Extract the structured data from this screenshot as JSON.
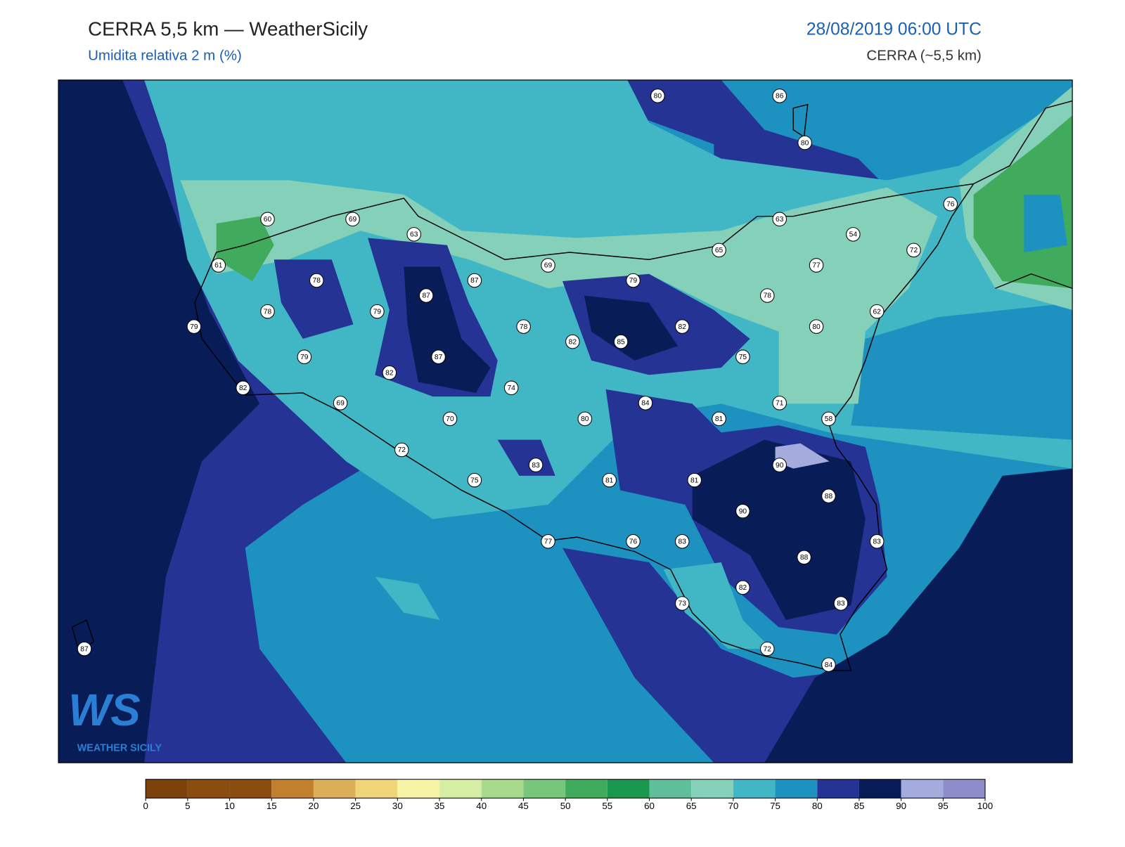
{
  "header": {
    "title": "CERRA 5,5 km — WeatherSicily",
    "subtitle": "Umidita relativa 2 m (%)",
    "datetime": "28/08/2019 06:00 UTC",
    "model": "CERRA (~5,5 km)"
  },
  "stations": [
    80,
    86,
    80,
    60,
    69,
    63,
    76,
    63,
    54,
    72,
    61,
    65,
    77,
    78,
    87,
    69,
    79,
    87,
    78,
    78,
    79,
    62,
    79,
    78,
    82,
    85,
    82,
    80,
    79,
    87,
    75,
    82,
    74,
    82,
    84,
    71,
    69,
    70,
    80,
    81,
    58,
    72,
    83,
    90,
    75,
    81,
    81,
    88,
    90,
    77,
    76,
    83,
    83,
    88,
    82,
    73,
    83,
    87,
    72,
    84
  ],
  "colorbar": {
    "ticks": [
      0,
      5,
      10,
      15,
      20,
      25,
      30,
      35,
      40,
      45,
      50,
      55,
      60,
      65,
      70,
      75,
      80,
      85,
      90,
      95,
      100
    ],
    "colors": [
      "#7b420b",
      "#8b4c10",
      "#8b4c10",
      "#c0802e",
      "#dcae5a",
      "#f0d47a",
      "#f7f4a6",
      "#d6eea4",
      "#a8da8c",
      "#78c679",
      "#41ab5d",
      "#1a9850",
      "#5fbf9a",
      "#84d0b8",
      "#41b6c4",
      "#1d91c0",
      "#253494",
      "#081d58",
      "#a3acdc",
      "#8e8ccb"
    ]
  },
  "logo": {
    "mark": "WS",
    "name": "WEATHER SICILY"
  }
}
